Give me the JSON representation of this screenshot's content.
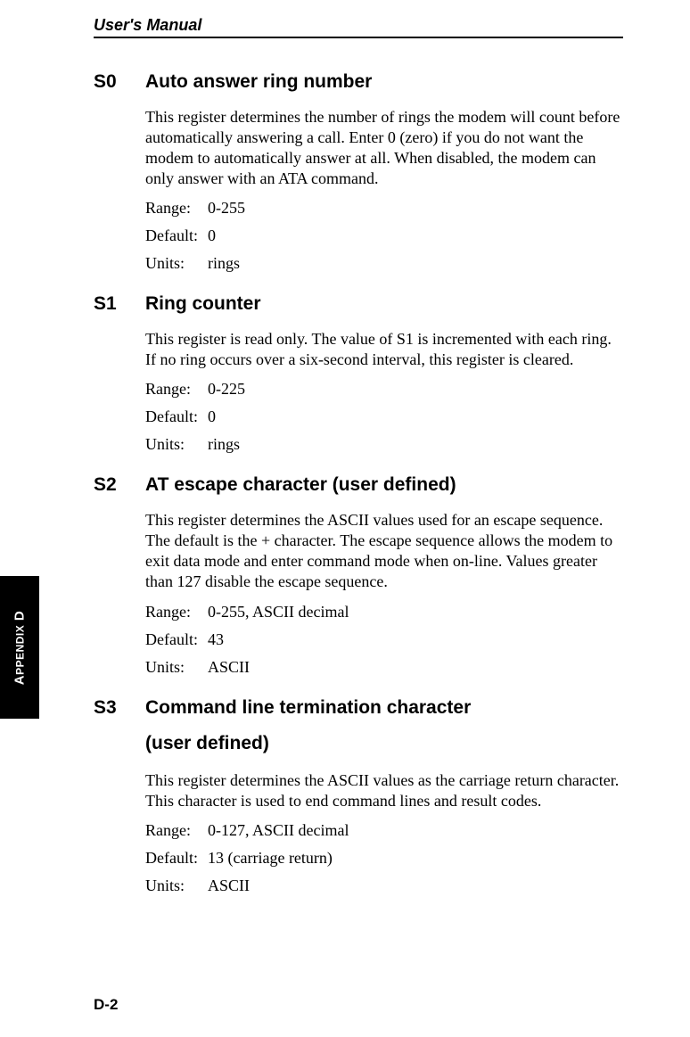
{
  "header": {
    "title": "User's Manual"
  },
  "sidetab": {
    "label_prefix": "A",
    "label_mid": "PPENDIX",
    "label_suffix": " D"
  },
  "footer": {
    "page_number": "D-2"
  },
  "sections": [
    {
      "code": "S0",
      "title": "Auto answer ring number",
      "description": "This register determines the number of rings the modem will count before automatically answering a call. Enter 0 (zero) if you do not want the modem to automatically answer at all. When disabled, the modem can only answer with an ATA command.",
      "props": {
        "range_label": "Range:",
        "range": "0-255",
        "default_label": "Default:",
        "default": "0",
        "units_label": "Units:",
        "units": "rings"
      }
    },
    {
      "code": "S1",
      "title": "Ring counter",
      "description": "This register is read only. The value of S1 is incremented with each ring. If no ring occurs over a six-second interval, this register is cleared.",
      "props": {
        "range_label": "Range:",
        "range": "0-225",
        "default_label": "Default:",
        "default": "0",
        "units_label": "Units:",
        "units": "rings"
      }
    },
    {
      "code": "S2",
      "title": "AT escape character (user defined)",
      "description": "This register determines the ASCII values used for an escape sequence. The default is the + character. The escape sequence allows the modem to exit data mode and enter command mode when on-line. Values greater than 127 disable the escape sequence.",
      "props": {
        "range_label": "Range:",
        "range": "0-255, ASCII decimal",
        "default_label": "Default:",
        "default": "43",
        "units_label": "Units:",
        "units": "ASCII"
      }
    },
    {
      "code": "S3",
      "title": "Command line termination character",
      "subtitle": "(user defined)",
      "description": "This register determines the ASCII values as the carriage return character. This character is used to end command lines and result codes.",
      "props": {
        "range_label": "Range:",
        "range": "0-127, ASCII decimal",
        "default_label": "Default:",
        "default": "13 (carriage return)",
        "units_label": "Units:",
        "units": "ASCII"
      }
    }
  ]
}
